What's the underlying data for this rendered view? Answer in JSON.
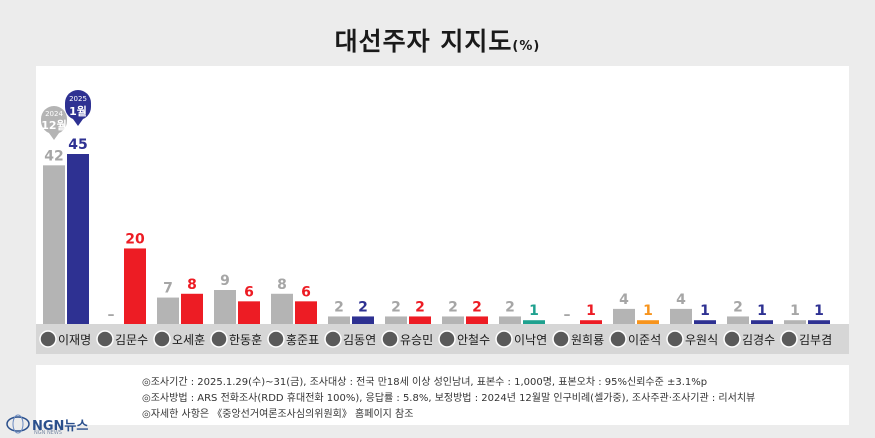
{
  "title": {
    "main": "대선주자 지지도",
    "unit": "(%)"
  },
  "legend": {
    "prev": {
      "year": "2024",
      "month": "12월"
    },
    "curr": {
      "year": "2025",
      "month": "1월"
    }
  },
  "colors": {
    "prev": "#b4b4b4",
    "prev_label": "#a6a6a6",
    "dem": "#2e3192",
    "ppp": "#ed1c24",
    "rebuild": "#1fa18f",
    "reform": "#f7941d",
    "strip": "#d6d6d6"
  },
  "chart_data": {
    "type": "bar",
    "title": "대선주자 지지도(%)",
    "ylim": [
      0,
      50
    ],
    "series_periods": [
      "2024 12월",
      "2025 1월"
    ],
    "categories": [
      "이재명",
      "김문수",
      "오세훈",
      "한동훈",
      "홍준표",
      "김동연",
      "유승민",
      "안철수",
      "이낙연",
      "원희룡",
      "이준석",
      "우원식",
      "김경수",
      "김부겸"
    ],
    "prev_labels": [
      "42",
      "–",
      "7",
      "9",
      "8",
      "2",
      "2",
      "2",
      "2",
      "–",
      "4",
      "4",
      "2",
      "1"
    ],
    "prev_values": [
      42,
      0,
      7,
      9,
      8,
      2,
      2,
      2,
      2,
      0,
      4,
      4,
      2,
      1
    ],
    "curr_labels": [
      "45",
      "20",
      "8",
      "6",
      "6",
      "2",
      "2",
      "2",
      "1",
      "1",
      "1",
      "1",
      "1",
      "1"
    ],
    "curr_values": [
      45,
      20,
      8,
      6,
      6,
      2,
      2,
      2,
      1,
      1,
      1,
      1,
      1,
      1
    ],
    "curr_color_keys": [
      "dem",
      "ppp",
      "ppp",
      "ppp",
      "ppp",
      "dem",
      "ppp",
      "ppp",
      "rebuild",
      "ppp",
      "reform",
      "dem",
      "dem",
      "dem"
    ]
  },
  "notes": [
    "◎조사기간 : 2025.1.29(수)~31(금), 조사대상 : 전국 만18세 이상 성인남녀, 표본수 : 1,000명, 표본오차 : 95%신뢰수준 ±3.1%p",
    "◎조사방법 : ARS 전화조사(RDD 휴대전화 100%), 응답률 : 5.8%, 보정방법 : 2024년 12월말 인구비례(셀가중), 조사주관·조사기관 : 리서치뷰",
    "◎자세한 사항은 《중앙선거여론조사심의위원회》 홈페이지 참조"
  ],
  "logo": {
    "name": "NGN뉴스",
    "sub": "NGN NEWS"
  }
}
